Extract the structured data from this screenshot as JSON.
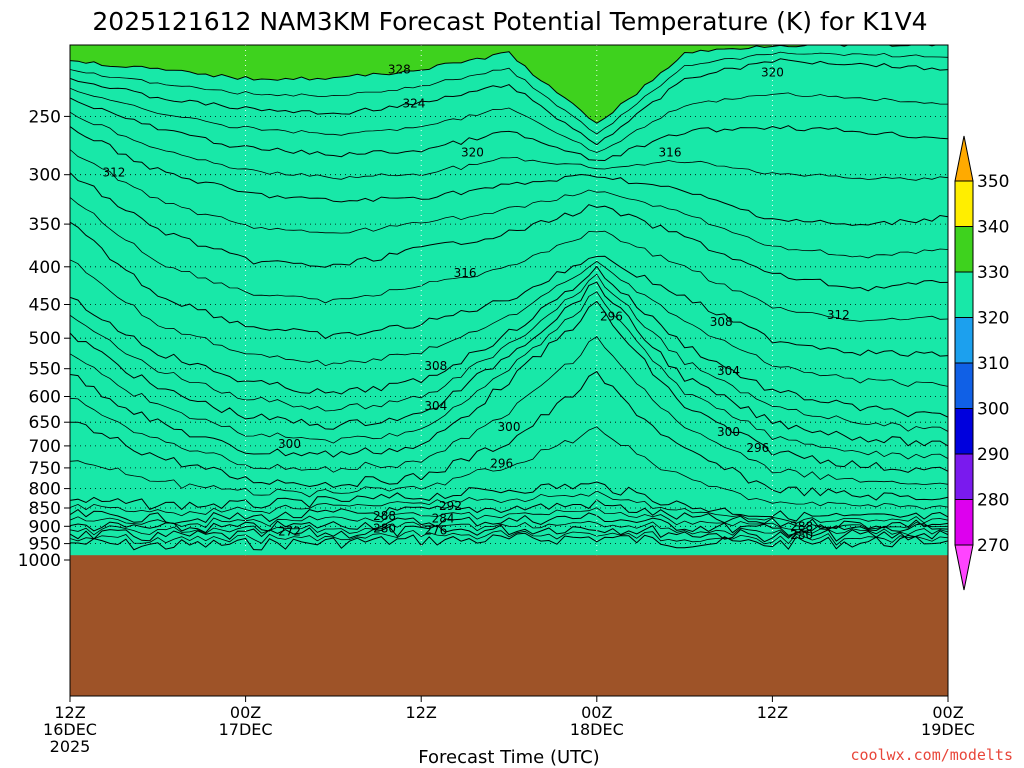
{
  "chart_data": {
    "type": "heatmap",
    "title": "2025121612 NAM3KM Forecast Potential Temperature (K) for K1V4",
    "xlabel": "Forecast Time (UTC)",
    "ylabel": "Pressure (hPa)",
    "y_ticks": [
      250,
      300,
      350,
      400,
      450,
      500,
      550,
      600,
      650,
      700,
      750,
      800,
      850,
      900,
      950,
      1000
    ],
    "y_tick_labels": [
      "250",
      "300",
      "350",
      "400",
      "450",
      "500",
      "550",
      "600",
      "650",
      "700",
      "750",
      "800",
      "850",
      "900",
      "950",
      "1000"
    ],
    "ylim": [
      200,
      1020
    ],
    "x_range_hours": [
      0,
      60
    ],
    "x_ticks": [
      {
        "hour": 0,
        "line1": "12Z",
        "line2": "16DEC",
        "line3": "2025"
      },
      {
        "hour": 12,
        "line1": "00Z",
        "line2": "17DEC",
        "line3": ""
      },
      {
        "hour": 24,
        "line1": "12Z",
        "line2": "",
        "line3": ""
      },
      {
        "hour": 36,
        "line1": "00Z",
        "line2": "18DEC",
        "line3": ""
      },
      {
        "hour": 48,
        "line1": "12Z",
        "line2": "",
        "line3": ""
      },
      {
        "hour": 60,
        "line1": "00Z",
        "line2": "19DEC",
        "line3": ""
      }
    ],
    "color_levels": [
      270,
      280,
      290,
      300,
      310,
      320,
      330,
      340,
      350
    ],
    "colorbar_labels": [
      "270",
      "280",
      "290",
      "300",
      "310",
      "320",
      "330",
      "340",
      "350"
    ],
    "colors": [
      "#ff44ff",
      "#dd00ee",
      "#7a1aee",
      "#0000dd",
      "#1060e6",
      "#1ca0ee",
      "#18e8a8",
      "#3ed21e",
      "#ffee00",
      "#ffaa00"
    ],
    "contour_interval_K": 2,
    "ground_color": "#9e5328",
    "ground_top_hPa": 985,
    "isentropes": [
      {
        "theta": 274,
        "hours": [
          0,
          6,
          12,
          18,
          24,
          30,
          36,
          42,
          48,
          54,
          60
        ],
        "pressure": [
          948,
          956,
          952,
          946,
          940,
          938,
          932,
          946,
          950,
          946,
          942
        ]
      },
      {
        "theta": 278,
        "hours": [
          0,
          6,
          12,
          18,
          24,
          30,
          36,
          42,
          48,
          54,
          60
        ],
        "pressure": [
          922,
          930,
          926,
          920,
          914,
          910,
          902,
          920,
          928,
          926,
          924
        ]
      },
      {
        "theta": 282,
        "hours": [
          0,
          6,
          12,
          18,
          24,
          30,
          36,
          42,
          48,
          54,
          60
        ],
        "pressure": [
          898,
          906,
          904,
          896,
          888,
          884,
          874,
          900,
          910,
          910,
          908
        ]
      },
      {
        "theta": 286,
        "hours": [
          0,
          6,
          12,
          18,
          24,
          30,
          36,
          42,
          48,
          54,
          60
        ],
        "pressure": [
          868,
          878,
          876,
          866,
          858,
          850,
          840,
          876,
          892,
          894,
          892
        ]
      },
      {
        "theta": 290,
        "hours": [
          0,
          6,
          12,
          18,
          24,
          30,
          36,
          42,
          48,
          54,
          60
        ],
        "pressure": [
          830,
          842,
          842,
          832,
          820,
          802,
          790,
          844,
          870,
          876,
          874
        ]
      },
      {
        "theta": 294,
        "hours": [
          0,
          6,
          12,
          18,
          24,
          30,
          36,
          42,
          48,
          54,
          60
        ],
        "pressure": [
          650,
          724,
          778,
          788,
          772,
          690,
          560,
          712,
          800,
          818,
          822
        ]
      },
      {
        "theta": 298,
        "hours": [
          0,
          6,
          12,
          18,
          24,
          30,
          36,
          42,
          48,
          54,
          60
        ],
        "pressure": [
          560,
          652,
          712,
          718,
          702,
          570,
          448,
          618,
          712,
          744,
          758
        ]
      },
      {
        "theta": 302,
        "hours": [
          0,
          6,
          12,
          18,
          24,
          30,
          36,
          42,
          48,
          54,
          60
        ],
        "pressure": [
          492,
          585,
          638,
          658,
          636,
          525,
          420,
          566,
          650,
          682,
          700
        ]
      },
      {
        "theta": 306,
        "hours": [
          0,
          6,
          12,
          18,
          24,
          30,
          36,
          42,
          48,
          54,
          60
        ],
        "pressure": [
          440,
          522,
          572,
          596,
          572,
          492,
          402,
          510,
          590,
          622,
          640
        ]
      },
      {
        "theta": 310,
        "hours": [
          0,
          6,
          12,
          18,
          24,
          30,
          36,
          42,
          48,
          54,
          60
        ],
        "pressure": [
          348,
          436,
          480,
          498,
          478,
          442,
          384,
          440,
          502,
          522,
          528
        ]
      },
      {
        "theta": 314,
        "hours": [
          0,
          6,
          12,
          18,
          24,
          30,
          36,
          42,
          48,
          54,
          60
        ],
        "pressure": [
          298,
          356,
          392,
          400,
          378,
          360,
          330,
          364,
          410,
          428,
          420
        ]
      },
      {
        "theta": 318,
        "hours": [
          0,
          6,
          12,
          18,
          24,
          30,
          36,
          42,
          48,
          54,
          60
        ],
        "pressure": [
          258,
          296,
          318,
          326,
          322,
          310,
          300,
          316,
          344,
          352,
          342
        ]
      },
      {
        "theta": 322,
        "hours": [
          0,
          6,
          12,
          18,
          24,
          30,
          36,
          42,
          48,
          54,
          60
        ],
        "pressure": [
          236,
          260,
          276,
          282,
          278,
          262,
          288,
          262,
          258,
          262,
          268
        ]
      },
      {
        "theta": 326,
        "hours": [
          0,
          6,
          12,
          18,
          24,
          30,
          36,
          42,
          48,
          54,
          60
        ],
        "pressure": [
          222,
          236,
          244,
          248,
          240,
          226,
          272,
          222,
          210,
          212,
          216
        ]
      },
      {
        "theta": 330,
        "hours": [
          0,
          6,
          12,
          18,
          24,
          30,
          36,
          42,
          48,
          54,
          60
        ],
        "pressure": [
          210,
          216,
          222,
          222,
          216,
          205,
          255,
          205,
          200,
          200,
          200
        ]
      }
    ],
    "contour_labels": [
      {
        "text": "328",
        "hour": 22.5,
        "pressure": 216
      },
      {
        "text": "324",
        "hour": 23.5,
        "pressure": 240
      },
      {
        "text": "320",
        "hour": 27.5,
        "pressure": 280
      },
      {
        "text": "320",
        "hour": 48.0,
        "pressure": 218
      },
      {
        "text": "316",
        "hour": 41.0,
        "pressure": 280
      },
      {
        "text": "312",
        "hour": 3.0,
        "pressure": 298
      },
      {
        "text": "316",
        "hour": 27.0,
        "pressure": 408
      },
      {
        "text": "296",
        "hour": 37.0,
        "pressure": 467
      },
      {
        "text": "308",
        "hour": 44.5,
        "pressure": 475
      },
      {
        "text": "312",
        "hour": 52.5,
        "pressure": 465
      },
      {
        "text": "308",
        "hour": 25.0,
        "pressure": 545
      },
      {
        "text": "304",
        "hour": 45.0,
        "pressure": 554
      },
      {
        "text": "304",
        "hour": 25.0,
        "pressure": 618
      },
      {
        "text": "300",
        "hour": 30.0,
        "pressure": 660
      },
      {
        "text": "300",
        "hour": 15.0,
        "pressure": 696
      },
      {
        "text": "300",
        "hour": 45.0,
        "pressure": 670
      },
      {
        "text": "296",
        "hour": 29.5,
        "pressure": 740
      },
      {
        "text": "296",
        "hour": 47.0,
        "pressure": 705
      },
      {
        "text": "292",
        "hour": 26.0,
        "pressure": 845
      },
      {
        "text": "288",
        "hour": 21.5,
        "pressure": 872
      },
      {
        "text": "284",
        "hour": 25.5,
        "pressure": 878
      },
      {
        "text": "280",
        "hour": 21.5,
        "pressure": 906
      },
      {
        "text": "276",
        "hour": 25.0,
        "pressure": 912
      },
      {
        "text": "272",
        "hour": 15.0,
        "pressure": 915
      },
      {
        "text": "288",
        "hour": 50.0,
        "pressure": 900
      },
      {
        "text": "280",
        "hour": 50.0,
        "pressure": 925
      }
    ]
  },
  "credit": "coolwx.com/modelts"
}
